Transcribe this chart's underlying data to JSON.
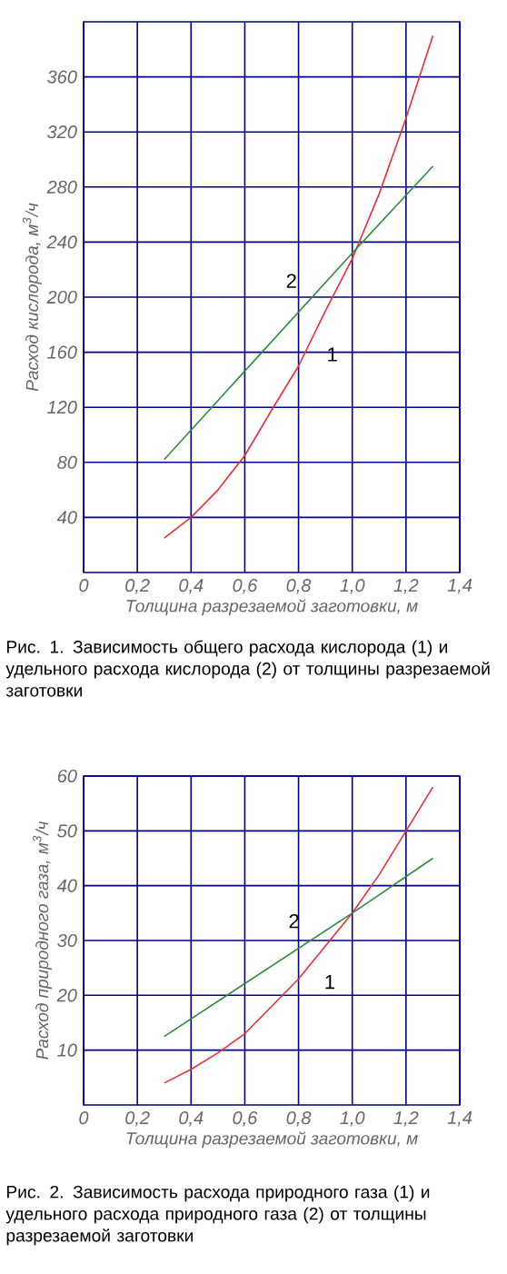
{
  "chart_data": [
    {
      "type": "line",
      "xlabel": "Толщина разрезаемой заготовки, м",
      "ylabel": "Расход кислорода, м$^{3}$/ч",
      "xlim": [
        0,
        1.4
      ],
      "ylim": [
        0,
        400
      ],
      "xticks": [
        0,
        {
          "value": 0.2,
          "label": "0,2"
        },
        {
          "value": 0.4,
          "label": "0,4"
        },
        {
          "value": 0.6,
          "label": "0,6"
        },
        {
          "value": 0.8,
          "label": "0,8"
        },
        {
          "value": 1.0,
          "label": "1,0"
        },
        {
          "value": 1.2,
          "label": "1,2"
        },
        {
          "value": 1.4,
          "label": "1,4"
        }
      ],
      "yticks": [
        40,
        80,
        120,
        160,
        200,
        240,
        280,
        320,
        360
      ],
      "grid": true,
      "annotations": [
        "Рис. 1. Зависимость общего расхода кислорода (1) и удельного расхода кислорода (2) от толщины разрезаемой заготовки"
      ],
      "series": [
        {
          "name": "1",
          "color": "#e8303a",
          "x": [
            0.3,
            0.4,
            0.5,
            0.6,
            0.7,
            0.8,
            0.9,
            1.0,
            1.1,
            1.2,
            1.3
          ],
          "values": [
            25,
            40,
            60,
            85,
            118,
            150,
            190,
            228,
            275,
            330,
            390
          ]
        },
        {
          "name": "2",
          "color": "#2e8b3a",
          "x": [
            0.3,
            1.0,
            1.3
          ],
          "values": [
            82,
            232,
            295
          ]
        }
      ]
    },
    {
      "type": "line",
      "xlabel": "Толщина разрезаемой заготовки, м",
      "ylabel": "Расход природного газа, м$^{3}$/ч",
      "xlim": [
        0,
        1.4
      ],
      "ylim": [
        0,
        60
      ],
      "xticks": [
        0,
        {
          "value": 0.2,
          "label": "0,2"
        },
        {
          "value": 0.4,
          "label": "0,4"
        },
        {
          "value": 0.6,
          "label": "0,6"
        },
        {
          "value": 0.8,
          "label": "0,8"
        },
        {
          "value": 1.0,
          "label": "1,0"
        },
        {
          "value": 1.2,
          "label": "1,2"
        },
        {
          "value": 1.4,
          "label": "1,4"
        }
      ],
      "yticks": [
        10,
        20,
        30,
        40,
        50,
        60
      ],
      "grid": true,
      "annotations": [
        "Рис. 2. Зависимость расхода природного газа (1) и удельного расхода природного газа (2) от толщины разрезаемой заготовки"
      ],
      "series": [
        {
          "name": "1",
          "color": "#e8303a",
          "x": [
            0.3,
            0.4,
            0.5,
            0.6,
            0.7,
            0.8,
            0.9,
            1.0,
            1.1,
            1.2,
            1.3
          ],
          "values": [
            4,
            6.5,
            9.5,
            13,
            18,
            23,
            29,
            35,
            42,
            50,
            58
          ]
        },
        {
          "name": "2",
          "color": "#2e8b3a",
          "x": [
            0.3,
            1.0,
            1.3
          ],
          "values": [
            12.5,
            35,
            45
          ]
        }
      ]
    }
  ]
}
